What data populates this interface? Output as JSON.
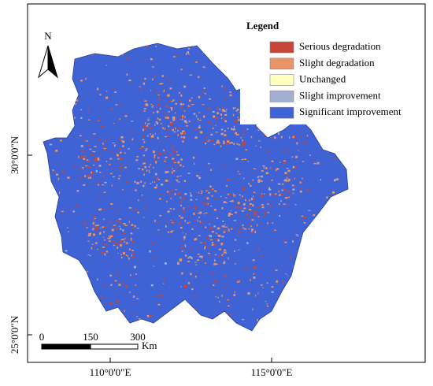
{
  "legend": {
    "title": "Legend",
    "items": [
      {
        "label": "Serious degradation",
        "color": "#c8453a"
      },
      {
        "label": "Slight degradation",
        "color": "#e8956a"
      },
      {
        "label": "Unchanged",
        "color": "#ffffc0"
      },
      {
        "label": "Slight improvement",
        "color": "#a4aed0"
      },
      {
        "label": "Significant improvement",
        "color": "#3f63d4"
      }
    ]
  },
  "north_label": "N",
  "scale_bar": {
    "labels": [
      "0",
      "150",
      "300"
    ],
    "unit": "Km"
  },
  "lat_labels": [
    "30°0'0\"N",
    "25°0'0\"N"
  ],
  "lon_labels": [
    "110°0'0\"E",
    "115°0'0\"E"
  ]
}
